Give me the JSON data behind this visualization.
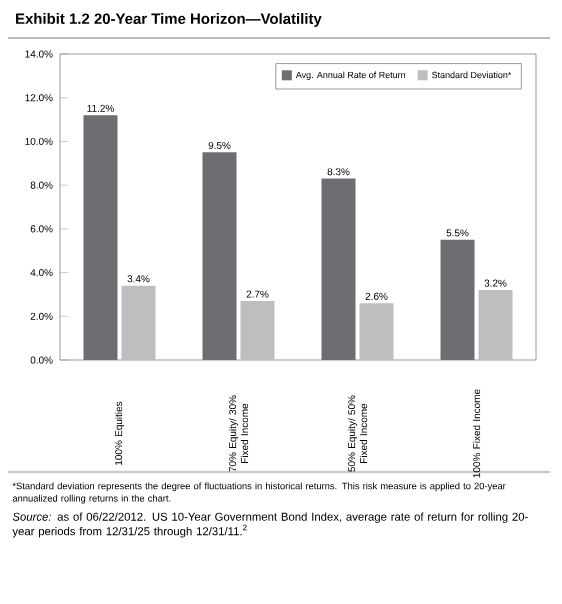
{
  "chart_data": {
    "type": "bar",
    "title": "Exhibit 1.2    20-Year Time Horizon—Volatility",
    "categories": [
      "100% Equities",
      "70% Equity/ 30% Fixed Income",
      "50% Equity/ 50% Fixed Income",
      "100% Fixed Income"
    ],
    "series": [
      {
        "name": "Avg. Annual Rate of Return",
        "color": "#6d6e71",
        "values": [
          11.2,
          9.5,
          8.3,
          5.5
        ],
        "value_labels": [
          "11.2%",
          "9.5%",
          "8.3%",
          "5.5%"
        ]
      },
      {
        "name": "Standard Deviation*",
        "color": "#bcbec0",
        "values": [
          3.4,
          2.7,
          2.6,
          3.2
        ],
        "value_labels": [
          "3.4%",
          "2.7%",
          "2.6%",
          "3.2%"
        ]
      }
    ],
    "ylim": [
      0,
      14
    ],
    "yticks": [
      {
        "value": 0,
        "label": "0.0%"
      },
      {
        "value": 2,
        "label": "2.0%"
      },
      {
        "value": 4,
        "label": "4.0%"
      },
      {
        "value": 6,
        "label": "6.0%"
      },
      {
        "value": 8,
        "label": "8.0%"
      },
      {
        "value": 10,
        "label": "10.0%"
      },
      {
        "value": 12,
        "label": "12.0%"
      },
      {
        "value": 14,
        "label": "14.0%"
      }
    ],
    "grid": false,
    "legend": "top right",
    "annotations": [
      "*Standard deviation represents the degree of fluctuations in historical returns. This risk measure is applied to 20-year annualized rolling returns in the chart.",
      "*Source:* as of 06/22/2012. US 10-Year Government Bond Index, average rate of return for rolling 20-year periods from 12/31/25 through 12/31/11.$^{2}$"
    ]
  }
}
